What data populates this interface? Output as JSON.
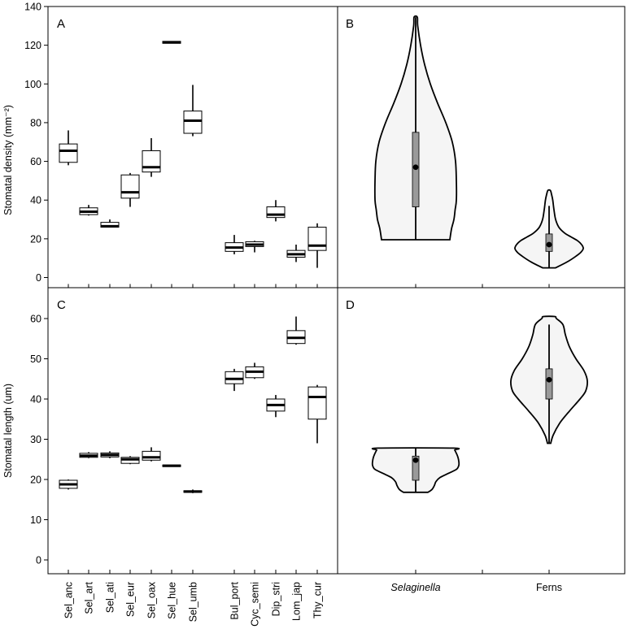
{
  "chart_data": [
    {
      "panel": "A",
      "type": "box",
      "ylabel": "Stomatal density (mm⁻²)",
      "ylim": [
        0,
        140
      ],
      "yticks": [
        0,
        20,
        40,
        60,
        80,
        100,
        120,
        140
      ],
      "categories": [
        "Sel_anc",
        "Sel_art",
        "Sel_ati",
        "Sel_eur",
        "Sel_oax",
        "Sel_hue",
        "Sel_umb",
        "Bul_port",
        "Cyc_semi",
        "Dip_stri",
        "Lom_jap",
        "Thy_cur"
      ],
      "boxes": [
        {
          "min": 58,
          "q1": 59.5,
          "median": 65.5,
          "q3": 69,
          "max": 76
        },
        {
          "min": 32,
          "q1": 32.5,
          "median": 34,
          "q3": 36,
          "max": 37.5
        },
        {
          "min": 26,
          "q1": 26,
          "median": 26.5,
          "q3": 28.5,
          "max": 30
        },
        {
          "min": 36.5,
          "q1": 41,
          "median": 44,
          "q3": 53,
          "max": 54
        },
        {
          "min": 52,
          "q1": 54.5,
          "median": 57,
          "q3": 65.5,
          "max": 72
        },
        {
          "min": 121,
          "q1": 121,
          "median": 121.5,
          "q3": 122,
          "max": 122
        },
        {
          "min": 73,
          "q1": 74.5,
          "median": 81,
          "q3": 86,
          "max": 99.5
        },
        {
          "min": 12,
          "q1": 13.5,
          "median": 15.5,
          "q3": 18,
          "max": 22
        },
        {
          "min": 13,
          "q1": 16,
          "median": 17,
          "q3": 18.5,
          "max": 19
        },
        {
          "min": 29,
          "q1": 31,
          "median": 32.5,
          "q3": 36.5,
          "max": 40
        },
        {
          "min": 8,
          "q1": 10.5,
          "median": 12,
          "q3": 14,
          "max": 17
        },
        {
          "min": 5,
          "q1": 14,
          "median": 16.5,
          "q3": 26,
          "max": 28
        }
      ]
    },
    {
      "panel": "B",
      "type": "violin",
      "ylim": [
        0,
        140
      ],
      "groups": [
        "Selaginella",
        "Ferns"
      ],
      "violins": [
        {
          "min": 19.5,
          "max": 134.5,
          "q1": 36.5,
          "q3": 75,
          "median": 57,
          "density": [
            [
              19.5,
              0.42
            ],
            [
              25,
              0.44
            ],
            [
              30,
              0.47
            ],
            [
              35,
              0.485
            ],
            [
              40,
              0.5
            ],
            [
              50,
              0.5
            ],
            [
              60,
              0.49
            ],
            [
              70,
              0.45
            ],
            [
              80,
              0.37
            ],
            [
              90,
              0.27
            ],
            [
              100,
              0.18
            ],
            [
              110,
              0.11
            ],
            [
              120,
              0.06
            ],
            [
              130,
              0.025
            ],
            [
              134.5,
              0.02
            ]
          ]
        },
        {
          "min": 5,
          "max": 45,
          "q1": 13.5,
          "q3": 22.5,
          "median": 17,
          "whisker_max": 37,
          "density": [
            [
              5,
              0.08
            ],
            [
              8,
              0.22
            ],
            [
              11,
              0.33
            ],
            [
              13,
              0.39
            ],
            [
              15,
              0.42
            ],
            [
              17,
              0.4
            ],
            [
              19,
              0.35
            ],
            [
              21,
              0.27
            ],
            [
              23,
              0.19
            ],
            [
              26,
              0.12
            ],
            [
              30,
              0.08
            ],
            [
              35,
              0.06
            ],
            [
              40,
              0.045
            ],
            [
              43,
              0.03
            ],
            [
              45,
              0.015
            ]
          ]
        }
      ]
    },
    {
      "panel": "C",
      "type": "box",
      "ylabel": "Stomatal length (um)",
      "ylim": [
        0,
        65
      ],
      "yticks": [
        0,
        10,
        20,
        30,
        40,
        50,
        60
      ],
      "categories": [
        "Sel_anc",
        "Sel_art",
        "Sel_ati",
        "Sel_eur",
        "Sel_oax",
        "Sel_hue",
        "Sel_umb",
        "Bul_port",
        "Cyc_semi",
        "Dip_stri",
        "Lom_jap",
        "Thy_cur"
      ],
      "boxes": [
        {
          "min": 17.5,
          "q1": 17.8,
          "median": 18.8,
          "q3": 19.8,
          "max": 20
        },
        {
          "min": 25.3,
          "q1": 25.5,
          "median": 25.9,
          "q3": 26.5,
          "max": 26.8
        },
        {
          "min": 25.3,
          "q1": 25.6,
          "median": 26.1,
          "q3": 26.6,
          "max": 27
        },
        {
          "min": 23.8,
          "q1": 24,
          "median": 25,
          "q3": 25.5,
          "max": 25.8
        },
        {
          "min": 24.5,
          "q1": 24.8,
          "median": 25.5,
          "q3": 27,
          "max": 28
        },
        {
          "min": 23.2,
          "q1": 23.2,
          "median": 23.4,
          "q3": 23.6,
          "max": 23.6
        },
        {
          "min": 16.6,
          "q1": 16.8,
          "median": 17,
          "q3": 17.2,
          "max": 17.5
        },
        {
          "min": 42,
          "q1": 43.8,
          "median": 45,
          "q3": 46.8,
          "max": 47.5
        },
        {
          "min": 45,
          "q1": 45.3,
          "median": 46.8,
          "q3": 48,
          "max": 49
        },
        {
          "min": 35.5,
          "q1": 37,
          "median": 38.5,
          "q3": 40,
          "max": 41
        },
        {
          "min": 53.5,
          "q1": 53.8,
          "median": 55.2,
          "q3": 57,
          "max": 60.5
        },
        {
          "min": 29,
          "q1": 35,
          "median": 40.5,
          "q3": 43,
          "max": 43.5
        }
      ]
    },
    {
      "panel": "D",
      "type": "violin",
      "ylim": [
        0,
        65
      ],
      "groups": [
        "Selaginella",
        "Ferns"
      ],
      "violins": [
        {
          "min": 16.8,
          "max": 27.8,
          "q1": 19.8,
          "q3": 25.8,
          "median": 24.8,
          "density": [
            [
              16.8,
              0.15
            ],
            [
              17.5,
              0.2
            ],
            [
              18.5,
              0.23
            ],
            [
              19.5,
              0.25
            ],
            [
              20.5,
              0.3
            ],
            [
              21.5,
              0.4
            ],
            [
              22.5,
              0.5
            ],
            [
              23.5,
              0.53
            ],
            [
              24.5,
              0.53
            ],
            [
              25.5,
              0.52
            ],
            [
              26.5,
              0.5
            ],
            [
              27.3,
              0.48
            ],
            [
              27.8,
              0.46
            ]
          ]
        },
        {
          "min": 29,
          "max": 60.5,
          "q1": 40,
          "q3": 47.5,
          "median": 44.8,
          "whisker_max": 58.5,
          "density": [
            [
              29,
              0.02
            ],
            [
              31,
              0.05
            ],
            [
              34,
              0.13
            ],
            [
              37,
              0.25
            ],
            [
              40,
              0.38
            ],
            [
              42,
              0.45
            ],
            [
              44.5,
              0.47
            ],
            [
              47,
              0.43
            ],
            [
              50,
              0.33
            ],
            [
              53,
              0.25
            ],
            [
              56,
              0.2
            ],
            [
              58.5,
              0.17
            ],
            [
              60,
              0.09
            ],
            [
              60.5,
              0.07
            ]
          ]
        }
      ]
    }
  ],
  "panel_letters": {
    "a": "A",
    "b": "B",
    "c": "C",
    "d": "D"
  },
  "y_title_top": "Stomatal density (mm⁻²)",
  "y_title_bottom": "Stomatal length (um)",
  "group_labels": [
    "Selaginella",
    "Ferns"
  ],
  "colors": {
    "box_fill": "#ffffff",
    "violin_fill": "#f5f5f5",
    "inner_box": "#9a9a9a",
    "stroke": "#000000"
  }
}
